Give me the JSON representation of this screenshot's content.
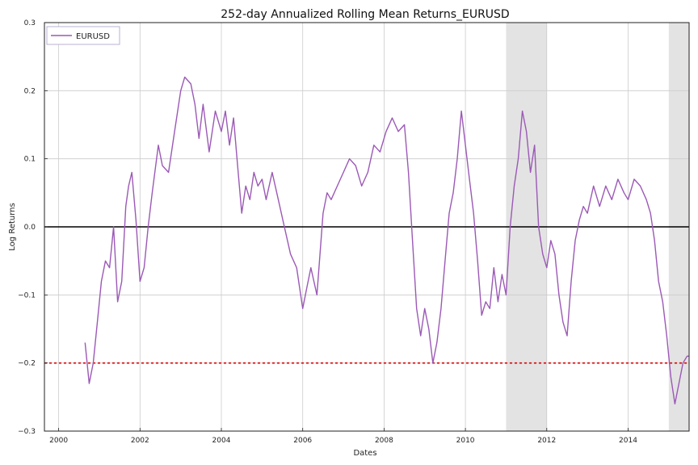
{
  "chart_data": {
    "type": "line",
    "title": "252-day Annualized Rolling Mean Returns_EURUSD",
    "xlabel": "Dates",
    "ylabel": "Log Returns",
    "xlim": [
      1999.65,
      2015.5
    ],
    "ylim": [
      -0.3,
      0.3
    ],
    "xticks": [
      2000,
      2002,
      2004,
      2006,
      2008,
      2010,
      2012,
      2014
    ],
    "xtick_labels": [
      "2000",
      "2002",
      "2004",
      "2006",
      "2008",
      "2010",
      "2012",
      "2014"
    ],
    "yticks": [
      -0.3,
      -0.2,
      -0.1,
      0.0,
      0.1,
      0.2,
      0.3
    ],
    "ytick_labels": [
      "−0.3",
      "−0.2",
      "−0.1",
      "0.0",
      "0.1",
      "0.2",
      "0.3"
    ],
    "grid": true,
    "legend": {
      "position": "top-left",
      "entries": [
        "EURUSD"
      ]
    },
    "shaded_regions": [
      {
        "x0": 2011.0,
        "x1": 2012.0
      },
      {
        "x0": 2015.0,
        "x1": 2015.5
      }
    ],
    "reference_lines": [
      {
        "y": 0.0,
        "color": "#000000",
        "style": "solid"
      },
      {
        "y": -0.2,
        "color": "#e00000",
        "style": "dotted"
      }
    ],
    "series": [
      {
        "name": "EURUSD",
        "color": "#9b59b6",
        "x": [
          2000.65,
          2000.75,
          2000.85,
          2000.95,
          2001.05,
          2001.15,
          2001.25,
          2001.35,
          2001.45,
          2001.55,
          2001.65,
          2001.72,
          2001.8,
          2001.9,
          2002.0,
          2002.1,
          2002.2,
          2002.3,
          2002.45,
          2002.55,
          2002.7,
          2002.85,
          2003.0,
          2003.1,
          2003.25,
          2003.35,
          2003.45,
          2003.55,
          2003.7,
          2003.85,
          2004.0,
          2004.1,
          2004.2,
          2004.3,
          2004.4,
          2004.5,
          2004.6,
          2004.7,
          2004.8,
          2004.9,
          2005.0,
          2005.1,
          2005.25,
          2005.4,
          2005.55,
          2005.7,
          2005.85,
          2006.0,
          2006.1,
          2006.2,
          2006.35,
          2006.5,
          2006.6,
          2006.7,
          2006.85,
          2007.0,
          2007.15,
          2007.3,
          2007.45,
          2007.6,
          2007.75,
          2007.9,
          2008.05,
          2008.2,
          2008.35,
          2008.5,
          2008.6,
          2008.7,
          2008.8,
          2008.9,
          2009.0,
          2009.1,
          2009.2,
          2009.3,
          2009.4,
          2009.5,
          2009.6,
          2009.7,
          2009.8,
          2009.9,
          2010.0,
          2010.1,
          2010.2,
          2010.3,
          2010.4,
          2010.5,
          2010.6,
          2010.7,
          2010.8,
          2010.9,
          2011.0,
          2011.1,
          2011.2,
          2011.3,
          2011.4,
          2011.5,
          2011.6,
          2011.7,
          2011.8,
          2011.9,
          2012.0,
          2012.1,
          2012.2,
          2012.3,
          2012.4,
          2012.5,
          2012.6,
          2012.7,
          2012.8,
          2012.9,
          2013.0,
          2013.15,
          2013.3,
          2013.45,
          2013.6,
          2013.75,
          2013.9,
          2014.0,
          2014.15,
          2014.3,
          2014.45,
          2014.55,
          2014.65,
          2014.75,
          2014.85,
          2014.95,
          2015.05,
          2015.15,
          2015.25,
          2015.35,
          2015.45,
          2015.5
        ],
        "values": [
          -0.17,
          -0.23,
          -0.2,
          -0.14,
          -0.08,
          -0.05,
          -0.06,
          0.0,
          -0.11,
          -0.08,
          0.03,
          0.06,
          0.08,
          0.01,
          -0.08,
          -0.06,
          0.0,
          0.05,
          0.12,
          0.09,
          0.08,
          0.14,
          0.2,
          0.22,
          0.21,
          0.18,
          0.13,
          0.18,
          0.11,
          0.17,
          0.14,
          0.17,
          0.12,
          0.16,
          0.09,
          0.02,
          0.06,
          0.04,
          0.08,
          0.06,
          0.07,
          0.04,
          0.08,
          0.04,
          0.0,
          -0.04,
          -0.06,
          -0.12,
          -0.09,
          -0.06,
          -0.1,
          0.02,
          0.05,
          0.04,
          0.06,
          0.08,
          0.1,
          0.09,
          0.06,
          0.08,
          0.12,
          0.11,
          0.14,
          0.16,
          0.14,
          0.15,
          0.08,
          -0.02,
          -0.12,
          -0.16,
          -0.12,
          -0.15,
          -0.2,
          -0.17,
          -0.12,
          -0.05,
          0.02,
          0.05,
          0.1,
          0.17,
          0.12,
          0.07,
          0.02,
          -0.05,
          -0.13,
          -0.11,
          -0.12,
          -0.06,
          -0.11,
          -0.07,
          -0.1,
          0.0,
          0.06,
          0.1,
          0.17,
          0.14,
          0.08,
          0.12,
          0.0,
          -0.04,
          -0.06,
          -0.02,
          -0.04,
          -0.1,
          -0.14,
          -0.16,
          -0.08,
          -0.02,
          0.01,
          0.03,
          0.02,
          0.06,
          0.03,
          0.06,
          0.04,
          0.07,
          0.05,
          0.04,
          0.07,
          0.06,
          0.04,
          0.02,
          -0.02,
          -0.08,
          -0.11,
          -0.16,
          -0.22,
          -0.26,
          -0.23,
          -0.2,
          -0.19,
          -0.19
        ]
      }
    ]
  }
}
